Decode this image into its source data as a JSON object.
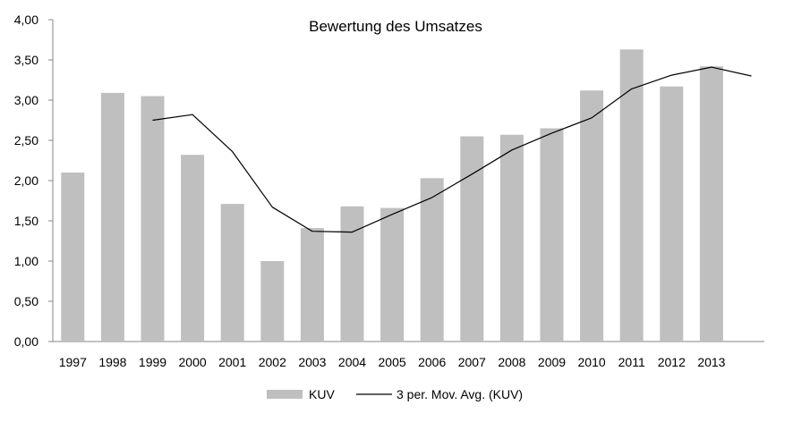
{
  "chart_data": {
    "type": "bar",
    "title": "Bewertung des Umsatzes",
    "xlabel": "",
    "ylabel": "",
    "categories": [
      "1997",
      "1998",
      "1999",
      "2000",
      "2001",
      "2002",
      "2003",
      "2004",
      "2005",
      "2006",
      "2007",
      "2008",
      "2009",
      "2010",
      "2011",
      "2012",
      "2013"
    ],
    "y_ticks": [
      "0,00",
      "0,50",
      "1,00",
      "1,50",
      "2,00",
      "2,50",
      "3,00",
      "3,50",
      "4,00"
    ],
    "ylim": [
      0,
      4
    ],
    "grid": false,
    "legend_position": "bottom",
    "series": [
      {
        "name": "KUV",
        "type": "bar",
        "color": "#bfbfbf",
        "values": [
          2.1,
          3.09,
          3.05,
          2.32,
          1.71,
          1.0,
          1.41,
          1.68,
          1.66,
          2.03,
          2.55,
          2.57,
          2.65,
          3.12,
          3.63,
          3.17,
          3.42
        ]
      },
      {
        "name": "3 per. Mov. Avg. (KUV)",
        "type": "line",
        "color": "#000000",
        "x": [
          "1999",
          "2000",
          "2001",
          "2002",
          "2003",
          "2004",
          "2005",
          "2006",
          "2007",
          "2008",
          "2009",
          "2010",
          "2011",
          "2012",
          "2013"
        ],
        "x_extra": "2014",
        "values": [
          2.75,
          2.82,
          2.36,
          1.67,
          1.37,
          1.36,
          1.58,
          1.79,
          2.08,
          2.38,
          2.59,
          2.78,
          3.14,
          3.31,
          3.41
        ],
        "extra_value": 3.3
      }
    ]
  }
}
